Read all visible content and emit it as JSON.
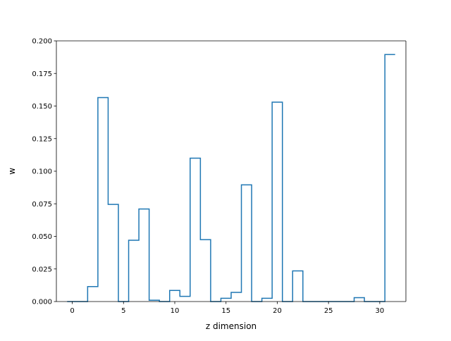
{
  "chart_data": {
    "type": "line",
    "style": "step",
    "title": "",
    "xlabel": "z dimension",
    "ylabel": "w",
    "xlim": [
      -1.55,
      32.55
    ],
    "ylim": [
      0.0,
      0.2
    ],
    "xticks": [
      0,
      5,
      10,
      15,
      20,
      25,
      30
    ],
    "yticks": [
      0.0,
      0.025,
      0.05,
      0.075,
      0.1,
      0.125,
      0.15,
      0.175,
      0.2
    ],
    "ytick_labels": [
      "0.000",
      "0.025",
      "0.050",
      "0.075",
      "0.100",
      "0.125",
      "0.150",
      "0.175",
      "0.200"
    ],
    "grid": false,
    "line_color": "#1f77b4",
    "series": [
      {
        "x": [
          0,
          1,
          2,
          3,
          4,
          5,
          6,
          7,
          8,
          9,
          10,
          11,
          12,
          13,
          14,
          15,
          16,
          17,
          18,
          19,
          20,
          21,
          22,
          23,
          24,
          25,
          26,
          27,
          28,
          29,
          30,
          31
        ],
        "values": [
          0.0,
          0.0,
          0.0115,
          0.1565,
          0.0745,
          0.0,
          0.047,
          0.071,
          0.001,
          0.0,
          0.0085,
          0.004,
          0.11,
          0.0475,
          0.0,
          0.0025,
          0.007,
          0.0895,
          0.0,
          0.0025,
          0.153,
          0.0,
          0.0235,
          0.0,
          0.0,
          0.0,
          0.0,
          0.0,
          0.003,
          0.0,
          0.0,
          0.1895
        ]
      }
    ]
  }
}
